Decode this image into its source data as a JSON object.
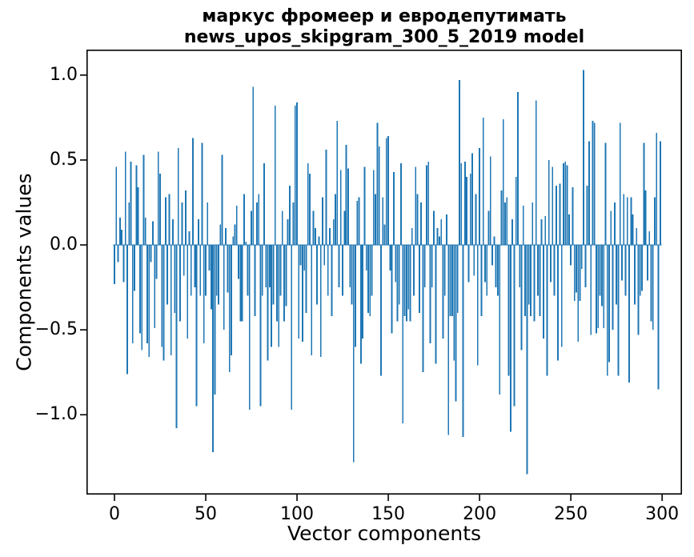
{
  "figure": {
    "title_line1": "маркус фромеер и евродепутимать",
    "title_line2": "news_upos_skipgram_300_5_2019 model"
  },
  "chart_data": {
    "type": "bar",
    "title": "маркус фромеер и евродепутимать\nnews_upos_skipgram_300_5_2019 model",
    "xlabel": "Vector components",
    "ylabel": "Components values",
    "legend": null,
    "grid": false,
    "bar_color": "#1f77b4",
    "spine_color": "#000000",
    "x_ticks": [
      0,
      50,
      100,
      150,
      200,
      250,
      300
    ],
    "y_ticks": [
      1.0,
      0.5,
      0.0,
      -0.5,
      -1.0
    ],
    "xlim": [
      -15.35,
      310.9
    ],
    "ylim": [
      -1.47,
      1.15
    ],
    "n_components": 300,
    "x_start": 0,
    "values": [
      -0.23,
      0.46,
      -0.1,
      0.16,
      0.09,
      -0.22,
      0.55,
      -0.76,
      0.25,
      0.49,
      -0.58,
      -0.27,
      0.47,
      0.34,
      -0.52,
      -0.62,
      0.53,
      0.16,
      -0.58,
      -0.66,
      -0.1,
      0.14,
      -0.49,
      -0.2,
      0.55,
      0.42,
      -0.6,
      -0.68,
      0.28,
      -0.35,
      0.3,
      -0.65,
      0.15,
      -0.4,
      -1.08,
      0.57,
      -0.45,
      0.25,
      -0.18,
      0.32,
      -0.55,
      0.08,
      -0.3,
      0.63,
      -0.25,
      -0.95,
      0.15,
      -0.3,
      0.6,
      -0.58,
      -0.3,
      0.25,
      -0.15,
      -0.38,
      -1.22,
      -0.88,
      -0.3,
      -0.35,
      0.12,
      0.53,
      -0.5,
      0.1,
      -0.28,
      -0.75,
      -0.65,
      0.05,
      0.12,
      0.23,
      -0.2,
      -0.45,
      -0.45,
      0.3,
      0.02,
      -0.3,
      -0.97,
      0.2,
      0.93,
      -0.42,
      0.25,
      0.3,
      -0.95,
      -0.3,
      0.48,
      -0.25,
      -0.68,
      -0.25,
      -0.6,
      -0.35,
      0.82,
      -0.45,
      -0.6,
      -0.3,
      0.2,
      -0.45,
      -0.36,
      0.15,
      0.35,
      -0.97,
      0.25,
      0.82,
      0.84,
      -0.55,
      -0.12,
      -0.57,
      -0.15,
      -0.4,
      0.48,
      0.42,
      -0.65,
      0.2,
      0.1,
      -0.35,
      0.05,
      -0.66,
      0.28,
      -0.12,
      0.56,
      -0.3,
      0.1,
      -0.42,
      0.15,
      0.3,
      0.73,
      -0.25,
      0.44,
      -0.3,
      0.2,
      0.59,
      0.45,
      -0.25,
      -0.35,
      -1.28,
      -0.6,
      0.26,
      0.28,
      -0.7,
      -0.55,
      0.46,
      -0.15,
      -0.4,
      -0.42,
      -0.3,
      0.44,
      0.3,
      0.72,
      0.58,
      -0.77,
      0.28,
      0.12,
      0.63,
      0.64,
      -0.15,
      -0.52,
      0.43,
      -0.22,
      -0.45,
      -0.35,
      0.48,
      -1.05,
      -0.42,
      -0.45,
      -0.38,
      -0.45,
      0.1,
      -0.3,
      0.46,
      0.3,
      -0.4,
      0.25,
      -0.75,
      -0.25,
      0.47,
      0.49,
      -0.58,
      -0.25,
      0.2,
      -0.7,
      0.1,
      0.05,
      0.15,
      -0.55,
      -0.3,
      0.18,
      -1.12,
      -0.42,
      -0.42,
      -0.68,
      -0.92,
      -0.4,
      0.97,
      0.48,
      -1.13,
      0.49,
      0.4,
      -0.22,
      0.42,
      0.54,
      -0.18,
      0.3,
      -0.71,
      0.57,
      -0.42,
      0.75,
      -0.22,
      -0.3,
      0.2,
      0.52,
      -0.12,
      0.05,
      -0.25,
      -0.3,
      -0.88,
      0.32,
      0.74,
      0.25,
      0.28,
      -0.77,
      -1.1,
      0.15,
      -0.95,
      0.4,
      0.9,
      -0.25,
      -0.62,
      0.23,
      -0.42,
      -1.35,
      -0.35,
      -0.42,
      0.25,
      -0.45,
      0.85,
      -0.3,
      -0.42,
      0.15,
      -0.55,
      0.17,
      -0.77,
      0.5,
      -0.22,
      0.46,
      -0.3,
      0.35,
      -0.68,
      0.36,
      -0.6,
      0.48,
      0.49,
      0.47,
      0.18,
      -0.12,
      0.34,
      -0.33,
      -0.28,
      -0.57,
      -0.33,
      -0.14,
      1.03,
      -0.25,
      0.35,
      0.61,
      -0.53,
      0.73,
      0.72,
      -0.52,
      -0.49,
      -0.3,
      -0.36,
      -0.49,
      0.6,
      -0.77,
      -0.69,
      0.2,
      -0.5,
      0.25,
      -0.35,
      -0.77,
      0.72,
      -0.21,
      0.3,
      -0.3,
      0.28,
      -0.81,
      0.28,
      0.18,
      -0.35,
      0.1,
      -0.53,
      -0.3,
      -0.27,
      0.6,
      0.32,
      -0.21,
      0.08,
      -0.45,
      -0.5,
      0.28,
      0.66,
      -0.85,
      0.61
    ]
  }
}
